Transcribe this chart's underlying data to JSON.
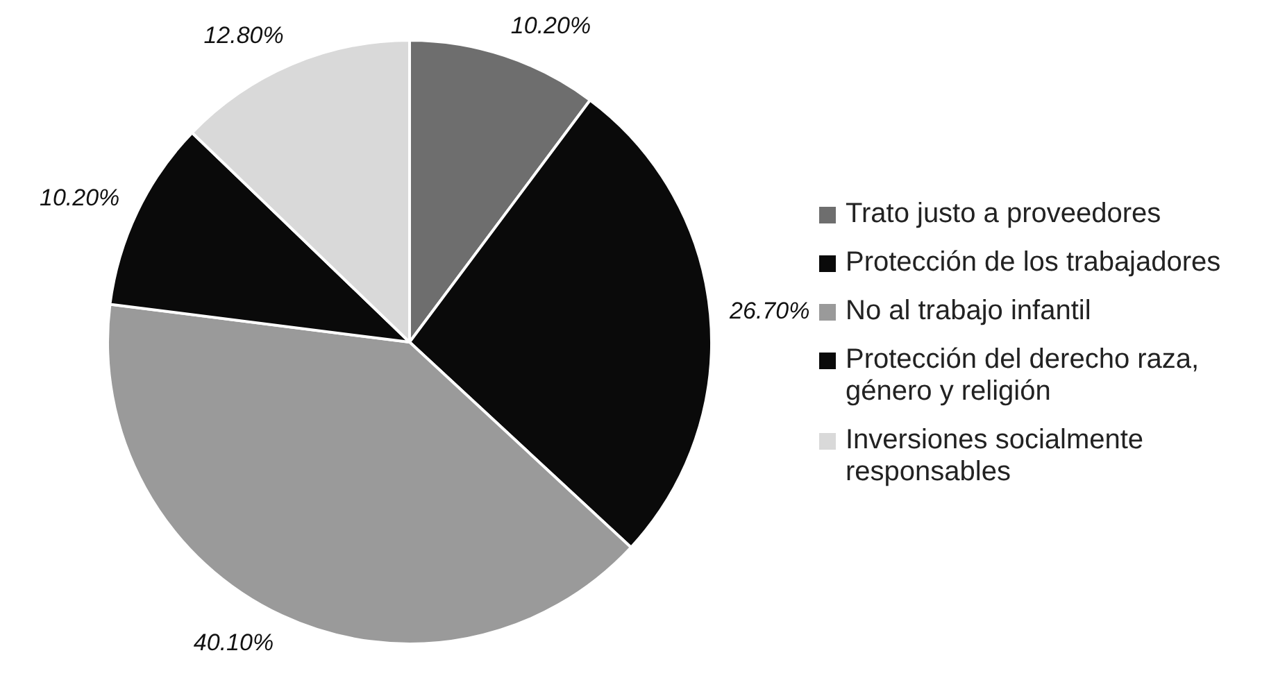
{
  "chart_data": {
    "type": "pie",
    "categories": [
      "Trato justo a proveedores",
      "Protección de los trabajadores",
      "No al trabajo infantil",
      "Protección del derecho raza, género y religión",
      "Inversiones socialmente responsables"
    ],
    "values": [
      10.2,
      26.7,
      40.1,
      10.2,
      12.8
    ],
    "value_labels": [
      "10.20%",
      "26.70%",
      "40.10%",
      "10.20%",
      "12.80%"
    ],
    "colors": [
      "#6e6e6e",
      "#0a0a0a",
      "#9a9a9a",
      "#0a0a0a",
      "#d9d9d9"
    ],
    "legend": "right"
  }
}
